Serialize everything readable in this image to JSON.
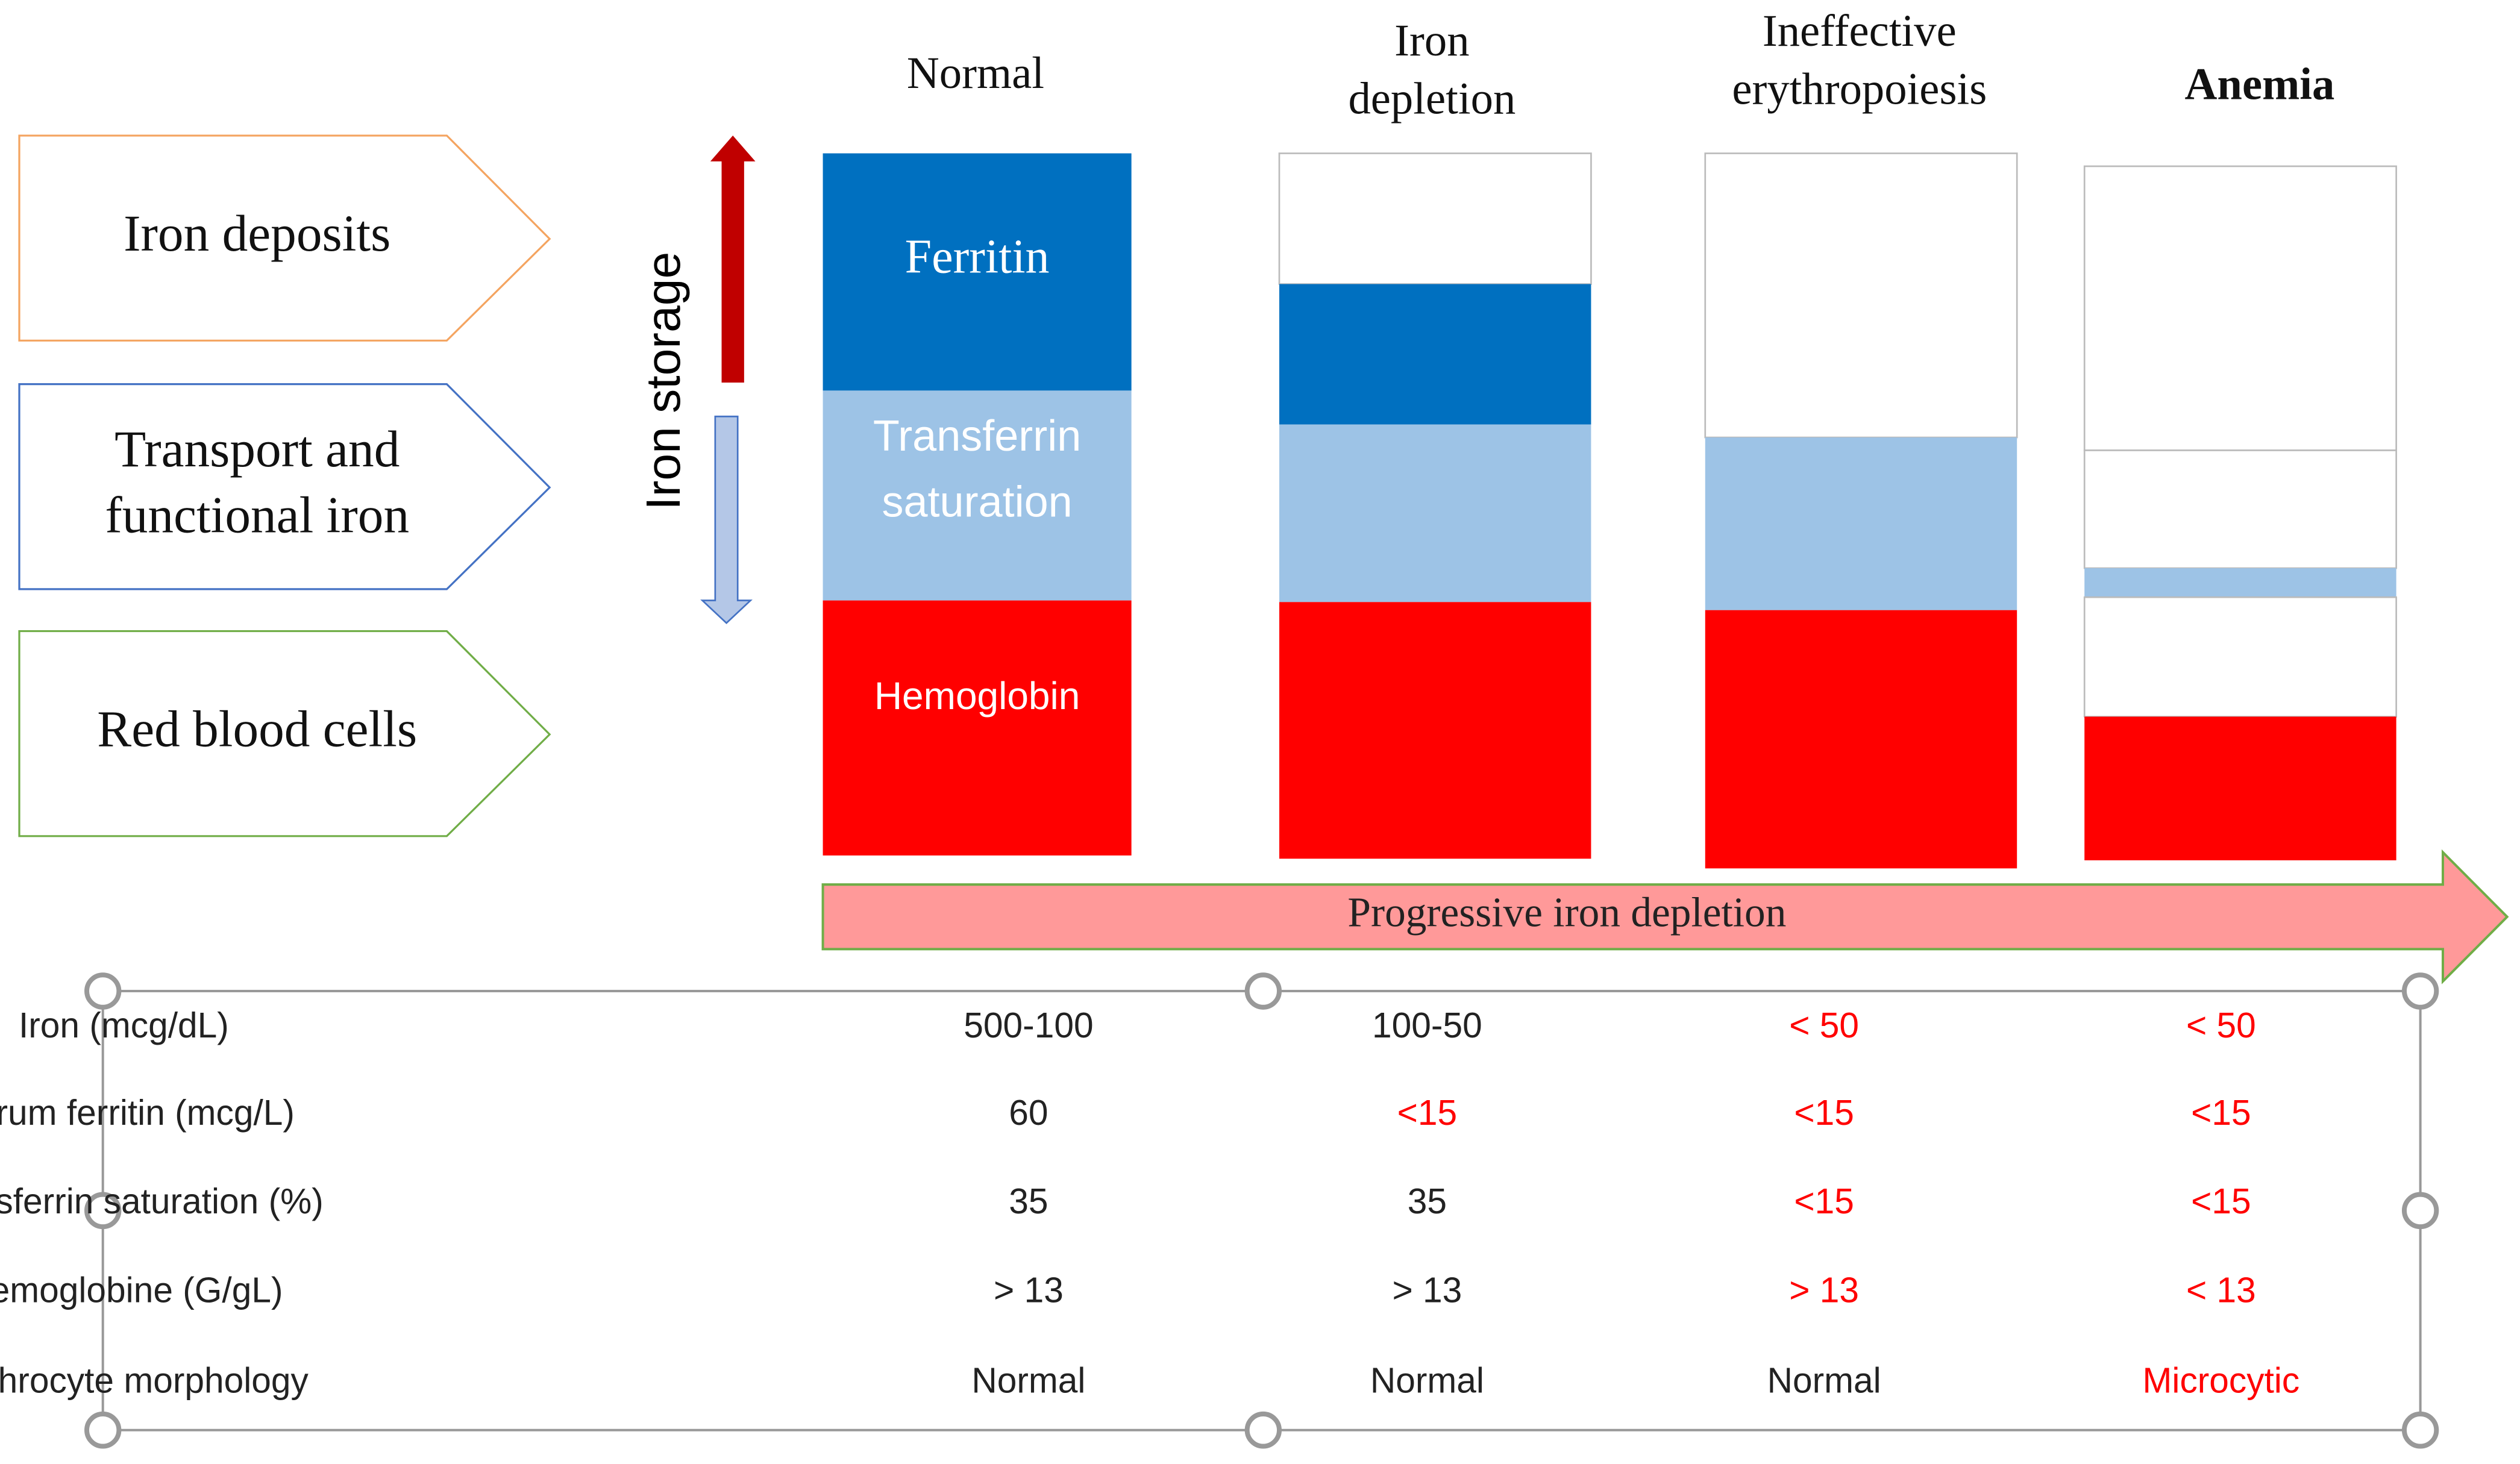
{
  "columns": [
    {
      "lines": [
        "Normal"
      ]
    },
    {
      "lines": [
        "Iron",
        "depletion"
      ]
    },
    {
      "lines": [
        "Ineffective",
        "erythropoiesis"
      ]
    },
    {
      "lines": [
        "Anemia"
      ],
      "bold": true
    }
  ],
  "compartments": [
    {
      "lines": [
        "Iron deposits"
      ],
      "color": "#f4a460"
    },
    {
      "lines": [
        "Transport and",
        "functional iron"
      ],
      "color": "#4472c4"
    },
    {
      "lines": [
        "Red blood cells"
      ],
      "color": "#70ad47"
    }
  ],
  "storage_label": "Iron  storage",
  "bar_labels": {
    "ferritin": "Ferritin",
    "transferrin": [
      "Transferrin",
      "saturation"
    ],
    "hemoglobin": "Hemoglobin"
  },
  "progression_label": "Progressive iron depletion",
  "table": {
    "rows": [
      {
        "label": "Iron (mcg/dL)",
        "cells": [
          "500-100",
          "100-50",
          "< 50",
          "< 50"
        ],
        "colors": [
          "#222",
          "#222",
          "#ff0000",
          "#ff0000"
        ]
      },
      {
        "label": "Serum ferritin (mcg/L)",
        "cells": [
          "60",
          "<15",
          "<15",
          "<15"
        ],
        "colors": [
          "#222",
          "#ff0000",
          "#ff0000",
          "#ff0000"
        ]
      },
      {
        "label": "Transferrin saturation (%)",
        "cells": [
          "35",
          "35",
          "<15",
          "<15"
        ],
        "colors": [
          "#222",
          "#222",
          "#ff0000",
          "#ff0000"
        ]
      },
      {
        "label": "Hemoglobine (G/gL)",
        "cells": [
          "> 13",
          "> 13",
          "> 13",
          "< 13"
        ],
        "colors": [
          "#222",
          "#222",
          "#ff0000",
          "#ff0000"
        ]
      },
      {
        "label": "erythrocyte morphology",
        "cells": [
          "Normal",
          "Normal",
          "Normal",
          "Microcytic"
        ],
        "colors": [
          "#222",
          "#222",
          "#222",
          "#ff0000"
        ]
      }
    ]
  }
}
